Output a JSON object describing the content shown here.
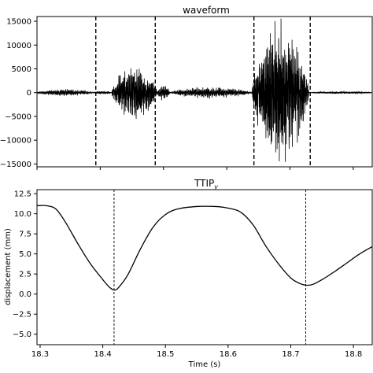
{
  "chart_data": [
    {
      "type": "line",
      "title": "waveform",
      "xlabel": "",
      "ylabel": "",
      "xlim": [
        18.3,
        18.83
      ],
      "ylim": [
        -15600,
        16000
      ],
      "yticks": [
        15000,
        10000,
        5000,
        0,
        -5000,
        -10000,
        -15000
      ],
      "ytick_labels": [
        "15000",
        "10000",
        "5000",
        "0",
        "−5000",
        "−10000",
        "−15000"
      ],
      "segments": [
        {
          "x0": 18.3,
          "x1": 18.39,
          "amp": 600
        },
        {
          "x0": 18.39,
          "x1": 18.418,
          "amp": 300
        },
        {
          "x0": 18.418,
          "x1": 18.49,
          "amp": 4800
        },
        {
          "x0": 18.49,
          "x1": 18.51,
          "amp": 1400
        },
        {
          "x0": 18.51,
          "x1": 18.64,
          "amp": 1000
        },
        {
          "x0": 18.64,
          "x1": 18.73,
          "amp": 12500
        },
        {
          "x0": 18.73,
          "x1": 18.83,
          "amp": 200
        }
      ],
      "vlines_x": [
        18.393,
        18.487,
        18.643,
        18.732
      ],
      "vline_style": "dashed",
      "grid": false
    },
    {
      "type": "line",
      "title": "TTIP",
      "title_subscript": "y",
      "xlabel": "Time (s)",
      "ylabel": "displacement (mm)",
      "xlim": [
        18.295,
        18.83
      ],
      "ylim": [
        -6.3,
        13.0
      ],
      "xticks": [
        18.3,
        18.4,
        18.5,
        18.6,
        18.7,
        18.8
      ],
      "xtick_labels": [
        "18.3",
        "18.4",
        "18.5",
        "18.6",
        "18.7",
        "18.8"
      ],
      "yticks": [
        12.5,
        10.0,
        7.5,
        5.0,
        2.5,
        0.0,
        -2.5,
        -5.0
      ],
      "ytick_labels": [
        "12.5",
        "10.0",
        "7.5",
        "5.0",
        "2.5",
        "0.0",
        "−2.5",
        "−5.0"
      ],
      "x": [
        18.295,
        18.31,
        18.325,
        18.34,
        18.36,
        18.38,
        18.4,
        18.41,
        18.418,
        18.425,
        18.44,
        18.46,
        18.48,
        18.5,
        18.52,
        18.55,
        18.58,
        18.6,
        18.62,
        18.64,
        18.66,
        18.68,
        18.7,
        18.715,
        18.725,
        18.735,
        18.75,
        18.77,
        18.79,
        18.81,
        18.83
      ],
      "y": [
        11.0,
        11.0,
        10.6,
        9.0,
        6.3,
        3.8,
        1.8,
        0.9,
        0.5,
        0.8,
        2.4,
        5.6,
        8.3,
        9.9,
        10.6,
        10.9,
        10.9,
        10.7,
        10.2,
        8.6,
        6.0,
        3.8,
        2.0,
        1.3,
        1.1,
        1.2,
        1.8,
        2.8,
        3.9,
        5.0,
        5.9
      ],
      "vlines_x": [
        18.418,
        18.724
      ],
      "vline_style": "dashed",
      "grid": false
    }
  ]
}
